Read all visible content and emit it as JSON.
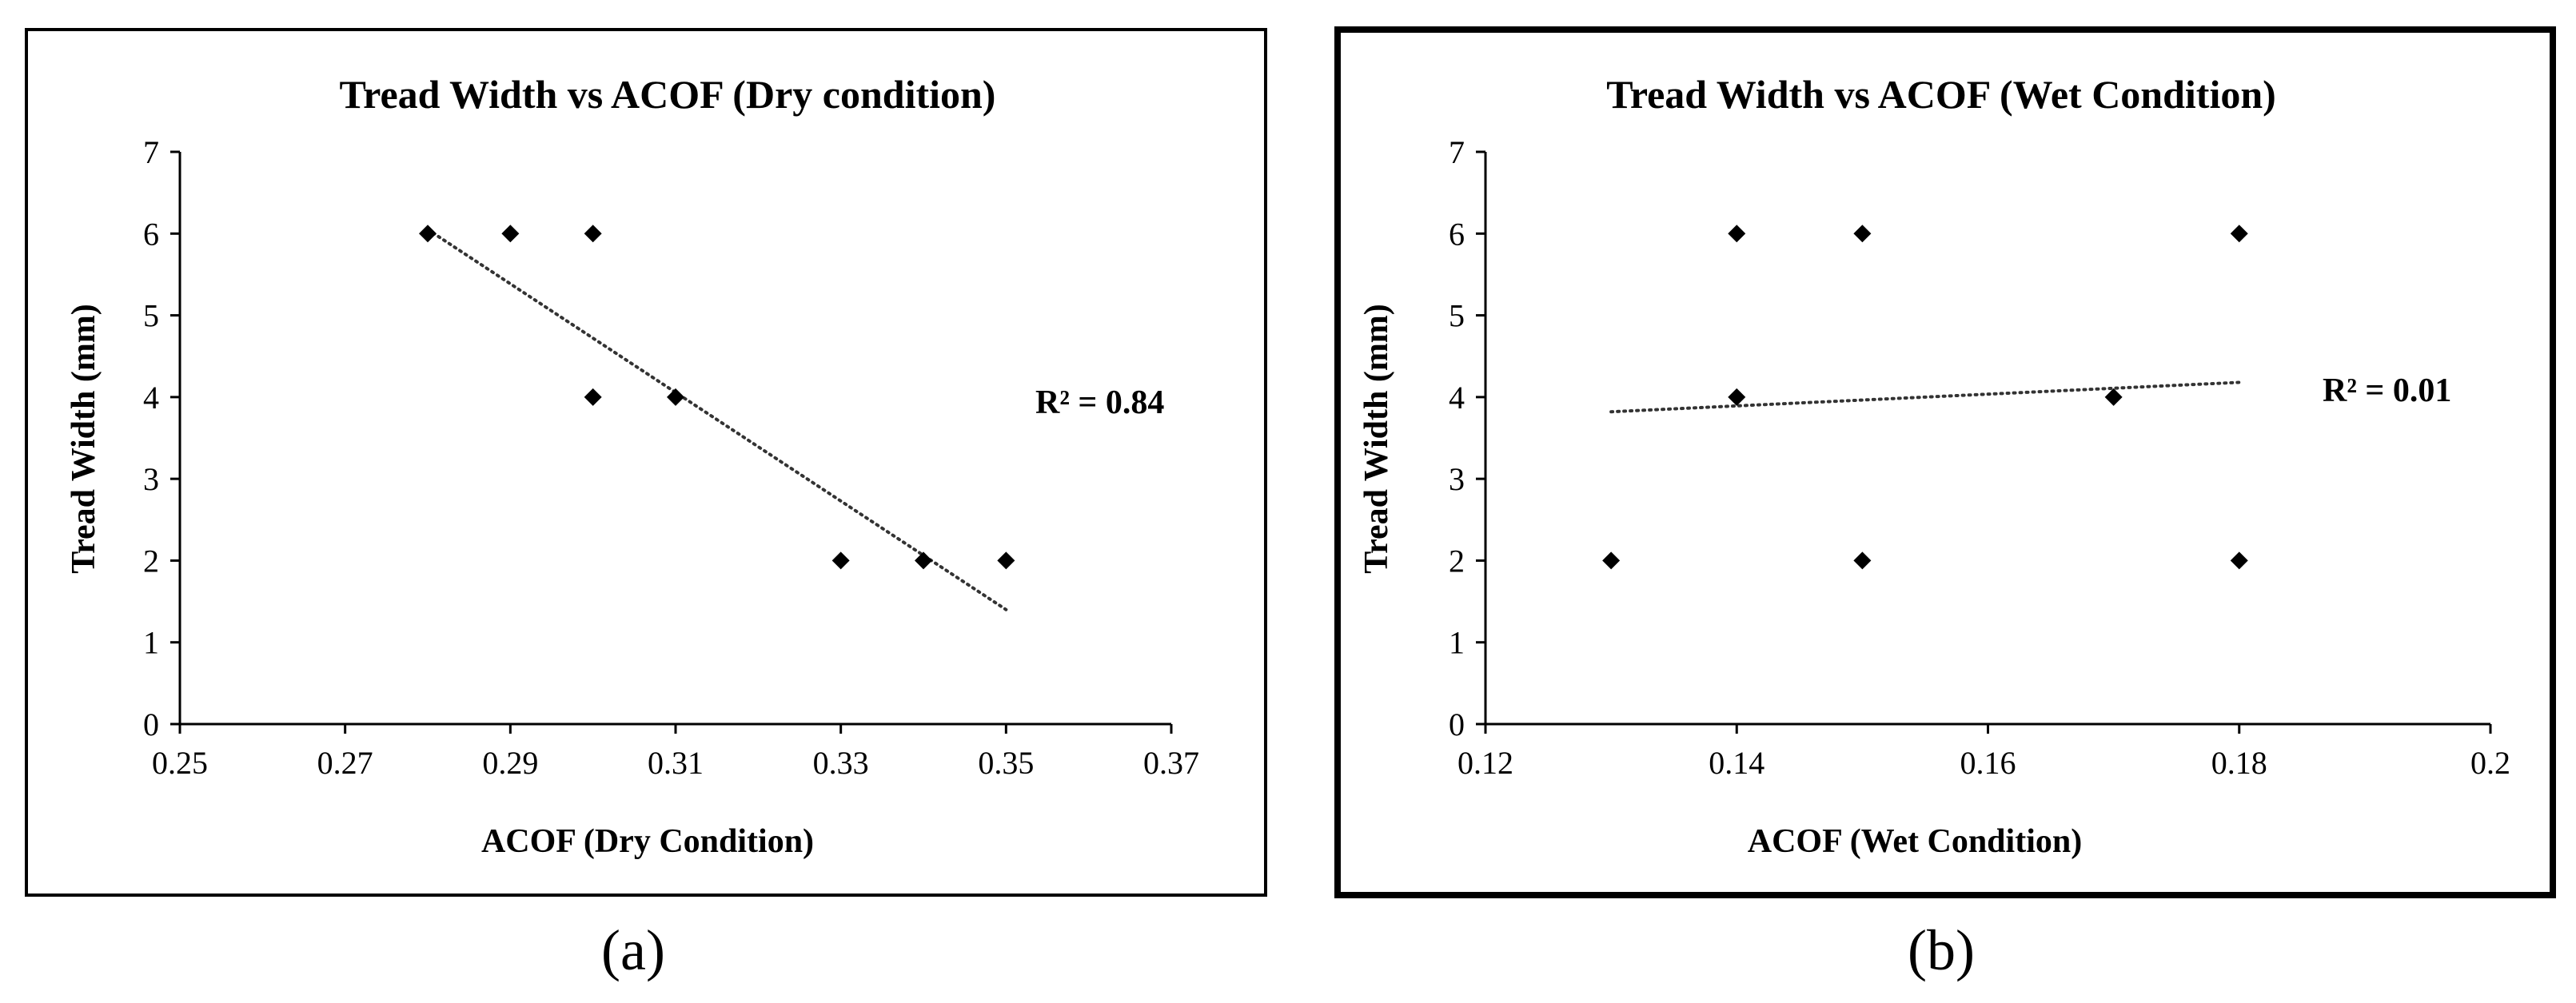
{
  "chart_data": [
    {
      "type": "scatter",
      "title": "Tread Width vs ACOF (Dry condition)",
      "xlabel": "ACOF (Dry Condition)",
      "ylabel": "Tread Width (mm)",
      "xlim": [
        0.25,
        0.37
      ],
      "ylim": [
        0,
        7
      ],
      "xticks": [
        0.25,
        0.27,
        0.29,
        0.31,
        0.33,
        0.35,
        0.37
      ],
      "xtick_labels": [
        "0.25",
        "0.27",
        "0.29",
        "0.31",
        "0.33",
        "0.35",
        "0.37"
      ],
      "yticks": [
        0,
        1,
        2,
        3,
        4,
        5,
        6,
        7
      ],
      "ytick_labels": [
        "0",
        "1",
        "2",
        "3",
        "4",
        "5",
        "6",
        "7"
      ],
      "series": [
        {
          "name": "Tread Width",
          "x": [
            0.28,
            0.29,
            0.3,
            0.3,
            0.31,
            0.33,
            0.34,
            0.35
          ],
          "y": [
            6,
            6,
            6,
            4,
            4,
            2,
            2,
            2
          ]
        }
      ],
      "trendline": {
        "type": "linear",
        "x": [
          0.28,
          0.35
        ],
        "y": [
          6.05,
          1.4
        ]
      },
      "annotation": "R² = 0.84",
      "annotation_pos": {
        "x": 0.357,
        "y": 3.9
      },
      "caption": "(a)"
    },
    {
      "type": "scatter",
      "title": "Tread Width vs ACOF (Wet Condition)",
      "xlabel": "ACOF (Wet Condition)",
      "ylabel": "Tread Width (mm)",
      "xlim": [
        0.12,
        0.2
      ],
      "ylim": [
        0,
        7
      ],
      "xticks": [
        0.12,
        0.14,
        0.16,
        0.18,
        0.2
      ],
      "xtick_labels": [
        "0.12",
        "0.14",
        "0.16",
        "0.18",
        "0.2"
      ],
      "yticks": [
        0,
        1,
        2,
        3,
        4,
        5,
        6,
        7
      ],
      "ytick_labels": [
        "0",
        "1",
        "2",
        "3",
        "4",
        "5",
        "6",
        "7"
      ],
      "series": [
        {
          "name": "Tread Width",
          "x": [
            0.13,
            0.14,
            0.14,
            0.15,
            0.15,
            0.17,
            0.18,
            0.18
          ],
          "y": [
            2,
            6,
            4,
            6,
            2,
            4,
            6,
            2
          ]
        }
      ],
      "trendline": {
        "type": "linear",
        "x": [
          0.13,
          0.18
        ],
        "y": [
          3.82,
          4.18
        ]
      },
      "annotation": "R² = 0.01",
      "annotation_pos": {
        "x": 0.1843,
        "y": 3.9
      },
      "caption": "(b)"
    }
  ]
}
